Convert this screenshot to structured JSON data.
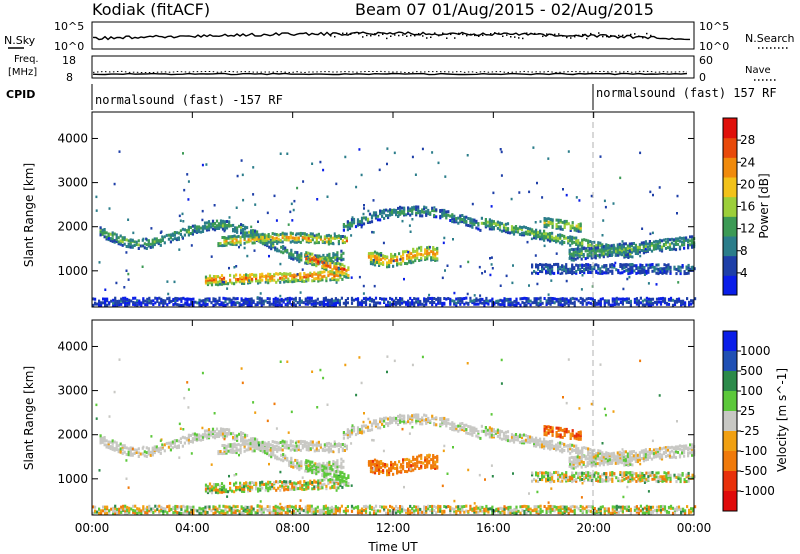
{
  "header": {
    "station": "Kodiak (fitACF)",
    "beam_date": "Beam 07 01/Aug/2015 - 02/Aug/2015"
  },
  "top_panels": {
    "nsky_label": "N.Sky",
    "nsky_ticks": [
      "10^5",
      "10^0"
    ],
    "nsearch_label": "N.Search",
    "nsearch_ticks": [
      "10^5",
      "10^0"
    ],
    "freq_label_1": "Freq.",
    "freq_label_2": "[MHz]",
    "freq_ticks": [
      "18",
      "8"
    ],
    "nave_label": "Nave",
    "nave_ticks": [
      "60",
      "0"
    ],
    "cpid_label": "CPID",
    "cpid_segments": [
      {
        "text": "normalsound (fast) -157 RF",
        "start_hour": 0
      },
      {
        "text": "normalsound (fast) 157 RF",
        "start_hour": 20
      }
    ]
  },
  "colors": {
    "power_scale": [
      "#0a1ee8",
      "#1e3fa8",
      "#2b7d8a",
      "#3c9a55",
      "#9ccf3a",
      "#f2c21a",
      "#f08a0c",
      "#e8490a",
      "#e0100a"
    ],
    "velocity_scale": [
      "#0a1ee8",
      "#2050b4",
      "#2c8a4a",
      "#5cc83a",
      "#c8c8c4",
      "#f0a012",
      "#f07a0a",
      "#e8300a",
      "#e00a0a"
    ]
  },
  "chart_data": [
    {
      "type": "heatmap",
      "quantity": "power",
      "ylabel": "Slant Range [km]",
      "ylim": [
        180,
        4600
      ],
      "yticks": [
        1000,
        2000,
        3000,
        4000
      ],
      "xlim_hours": [
        0,
        24
      ],
      "colorbar": {
        "label": "Power [dB]",
        "ticks": [
          "4",
          "8",
          "12",
          "16",
          "20",
          "24",
          "28"
        ],
        "range": [
          0,
          32
        ]
      }
    },
    {
      "type": "heatmap",
      "quantity": "velocity",
      "ylabel": "Slant Range [km]",
      "ylim": [
        180,
        4600
      ],
      "yticks": [
        1000,
        2000,
        3000,
        4000
      ],
      "xlabel": "Time UT",
      "xticks": [
        "00:00",
        "04:00",
        "08:00",
        "12:00",
        "16:00",
        "20:00",
        "00:00"
      ],
      "xtick_hours": [
        0,
        4,
        8,
        12,
        16,
        20,
        24
      ],
      "colorbar": {
        "label": "Velocity [m s^-1]",
        "ticks": [
          "1000",
          "500",
          "100",
          "25",
          "-25",
          "-100",
          "-500",
          "-1000"
        ]
      }
    }
  ]
}
